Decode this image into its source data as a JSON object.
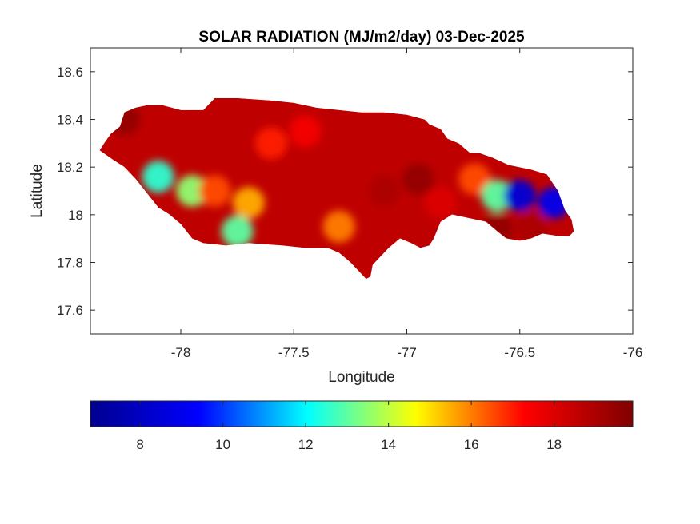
{
  "chart_data": {
    "type": "heatmap",
    "title": "SOLAR RADIATION (MJ/m2/day) 03-Dec-2025",
    "xlabel": "Longitude",
    "ylabel": "Latitude",
    "xlim": [
      -78.4,
      -76
    ],
    "ylim": [
      17.5,
      18.7
    ],
    "xticks": [
      -78,
      -77.5,
      -77,
      -76.5,
      -76
    ],
    "xtick_labels": [
      "-78",
      "-77.5",
      "-77",
      "-76.5",
      "-76"
    ],
    "yticks": [
      17.6,
      17.8,
      18,
      18.2,
      18.4,
      18.6
    ],
    "ytick_labels": [
      "17.6",
      "17.8",
      "18",
      "18.2",
      "18.4",
      "18.6"
    ],
    "colormap": "jet",
    "colorbar": {
      "range": [
        6.8,
        19.9
      ],
      "ticks": [
        8,
        10,
        12,
        14,
        16,
        18
      ],
      "tick_labels": [
        "8",
        "10",
        "12",
        "14",
        "16",
        "18"
      ],
      "stops": [
        "#00008f",
        "#0000ff",
        "#00ffff",
        "#ffff00",
        "#ff0000",
        "#800000"
      ]
    },
    "region_outline": [
      [
        -78.36,
        18.27
      ],
      [
        -78.34,
        18.3
      ],
      [
        -78.31,
        18.34
      ],
      [
        -78.27,
        18.37
      ],
      [
        -78.25,
        18.43
      ],
      [
        -78.2,
        18.45
      ],
      [
        -78.15,
        18.46
      ],
      [
        -78.08,
        18.46
      ],
      [
        -78.0,
        18.44
      ],
      [
        -77.9,
        18.44
      ],
      [
        -77.88,
        18.46
      ],
      [
        -77.85,
        18.49
      ],
      [
        -77.75,
        18.49
      ],
      [
        -77.6,
        18.48
      ],
      [
        -77.5,
        18.47
      ],
      [
        -77.4,
        18.45
      ],
      [
        -77.3,
        18.44
      ],
      [
        -77.2,
        18.43
      ],
      [
        -77.1,
        18.43
      ],
      [
        -77.0,
        18.42
      ],
      [
        -76.92,
        18.4
      ],
      [
        -76.9,
        18.38
      ],
      [
        -76.85,
        18.36
      ],
      [
        -76.82,
        18.32
      ],
      [
        -76.77,
        18.3
      ],
      [
        -76.72,
        18.26
      ],
      [
        -76.68,
        18.26
      ],
      [
        -76.62,
        18.24
      ],
      [
        -76.55,
        18.21
      ],
      [
        -76.45,
        18.19
      ],
      [
        -76.38,
        18.17
      ],
      [
        -76.33,
        18.1
      ],
      [
        -76.3,
        18.02
      ],
      [
        -76.27,
        17.98
      ],
      [
        -76.26,
        17.93
      ],
      [
        -76.28,
        17.91
      ],
      [
        -76.33,
        17.91
      ],
      [
        -76.4,
        17.92
      ],
      [
        -76.45,
        17.9
      ],
      [
        -76.5,
        17.89
      ],
      [
        -76.56,
        17.9
      ],
      [
        -76.6,
        17.93
      ],
      [
        -76.65,
        17.97
      ],
      [
        -76.7,
        17.98
      ],
      [
        -76.75,
        17.99
      ],
      [
        -76.8,
        18.0
      ],
      [
        -76.85,
        17.97
      ],
      [
        -76.88,
        17.9
      ],
      [
        -76.9,
        17.87
      ],
      [
        -76.94,
        17.86
      ],
      [
        -76.98,
        17.88
      ],
      [
        -77.03,
        17.9
      ],
      [
        -77.08,
        17.86
      ],
      [
        -77.12,
        17.82
      ],
      [
        -77.15,
        17.79
      ],
      [
        -77.16,
        17.74
      ],
      [
        -77.18,
        17.73
      ],
      [
        -77.2,
        17.75
      ],
      [
        -77.22,
        17.77
      ],
      [
        -77.25,
        17.8
      ],
      [
        -77.3,
        17.84
      ],
      [
        -77.35,
        17.86
      ],
      [
        -77.45,
        17.86
      ],
      [
        -77.55,
        17.87
      ],
      [
        -77.7,
        17.88
      ],
      [
        -77.8,
        17.87
      ],
      [
        -77.9,
        17.88
      ],
      [
        -77.95,
        17.9
      ],
      [
        -78.0,
        17.96
      ],
      [
        -78.05,
        18.0
      ],
      [
        -78.1,
        18.03
      ],
      [
        -78.15,
        18.09
      ],
      [
        -78.2,
        18.15
      ],
      [
        -78.25,
        18.2
      ],
      [
        -78.3,
        18.23
      ],
      [
        -78.36,
        18.27
      ]
    ],
    "value_field_samples": [
      {
        "lon": -78.25,
        "lat": 18.4,
        "value": 19.5
      },
      {
        "lon": -78.05,
        "lat": 18.38,
        "value": 18.6
      },
      {
        "lon": -78.1,
        "lat": 18.16,
        "value": 12.5
      },
      {
        "lon": -77.95,
        "lat": 18.1,
        "value": 13.5
      },
      {
        "lon": -77.85,
        "lat": 18.1,
        "value": 16.5
      },
      {
        "lon": -77.7,
        "lat": 18.05,
        "value": 15.5
      },
      {
        "lon": -77.75,
        "lat": 17.93,
        "value": 13.0
      },
      {
        "lon": -77.6,
        "lat": 18.3,
        "value": 17.0
      },
      {
        "lon": -77.45,
        "lat": 18.35,
        "value": 17.5
      },
      {
        "lon": -77.3,
        "lat": 17.95,
        "value": 16.0
      },
      {
        "lon": -77.1,
        "lat": 18.1,
        "value": 19.0
      },
      {
        "lon": -76.95,
        "lat": 18.15,
        "value": 19.5
      },
      {
        "lon": -76.85,
        "lat": 18.05,
        "value": 18.0
      },
      {
        "lon": -76.7,
        "lat": 18.15,
        "value": 16.5
      },
      {
        "lon": -76.6,
        "lat": 18.08,
        "value": 13.0
      },
      {
        "lon": -76.5,
        "lat": 18.08,
        "value": 8.5
      },
      {
        "lon": -76.35,
        "lat": 18.05,
        "value": 9.0
      },
      {
        "lon": -76.45,
        "lat": 17.95,
        "value": 19.0
      },
      {
        "lon": -76.6,
        "lat": 17.94,
        "value": 19.5
      }
    ]
  }
}
